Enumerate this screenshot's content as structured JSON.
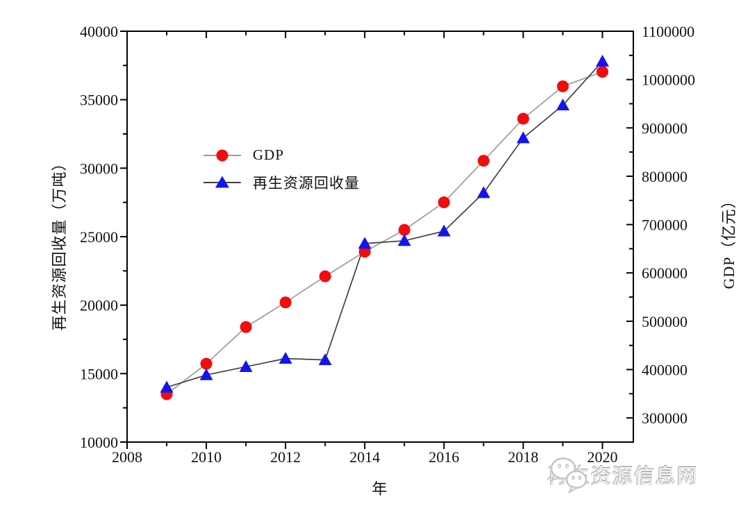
{
  "chart_data": {
    "type": "line",
    "title": "",
    "x": [
      2009,
      2010,
      2011,
      2012,
      2013,
      2014,
      2015,
      2016,
      2017,
      2018,
      2019,
      2020
    ],
    "xlabel": "年",
    "x_range": [
      2008,
      2020.78
    ],
    "x_ticks_major": [
      2008,
      2010,
      2012,
      2014,
      2016,
      2018,
      2020
    ],
    "x_ticks_minor": [
      2009,
      2011,
      2013,
      2015,
      2017,
      2019
    ],
    "grid": false,
    "legend_position": "inside-upper-left",
    "left_axis": {
      "label": "再生资源回收量（万吨）",
      "range": [
        10000,
        40000
      ],
      "ticks": [
        10000,
        15000,
        20000,
        25000,
        30000,
        35000,
        40000
      ],
      "minor_step": 2500
    },
    "right_axis": {
      "label": "GDP（亿元）",
      "range": [
        250000,
        1100000
      ],
      "ticks": [
        300000,
        400000,
        500000,
        600000,
        700000,
        800000,
        900000,
        1000000,
        1100000
      ],
      "minor_step": 50000
    },
    "series": [
      {
        "name": "GDP",
        "axis": "right",
        "marker": "circle",
        "marker_color": "#f40b0b",
        "line_color": "#9a9a9a",
        "values": [
          349000,
          412000,
          488000,
          539000,
          593000,
          644000,
          689000,
          746000,
          832000,
          919000,
          986000,
          1016000
        ]
      },
      {
        "name": "再生资源回收量",
        "axis": "left",
        "marker": "triangle",
        "marker_color": "#1414f0",
        "line_color": "#3f3f3f",
        "values": [
          14000,
          14900,
          15500,
          16100,
          16000,
          24500,
          24700,
          25400,
          28200,
          32200,
          34600,
          37800
        ]
      }
    ]
  },
  "watermark": {
    "text": "再生资源信息网",
    "icon": "wechat-icon"
  },
  "colors": {
    "axis": "#000000",
    "tick_label": "#111111",
    "gdp_marker": "#f40b0b",
    "recycle_marker": "#1414f0",
    "gdp_line": "#9a9a9a",
    "recycle_line": "#3f3f3f",
    "watermark_gray": "#c4c4c4",
    "background": "#ffffff"
  }
}
